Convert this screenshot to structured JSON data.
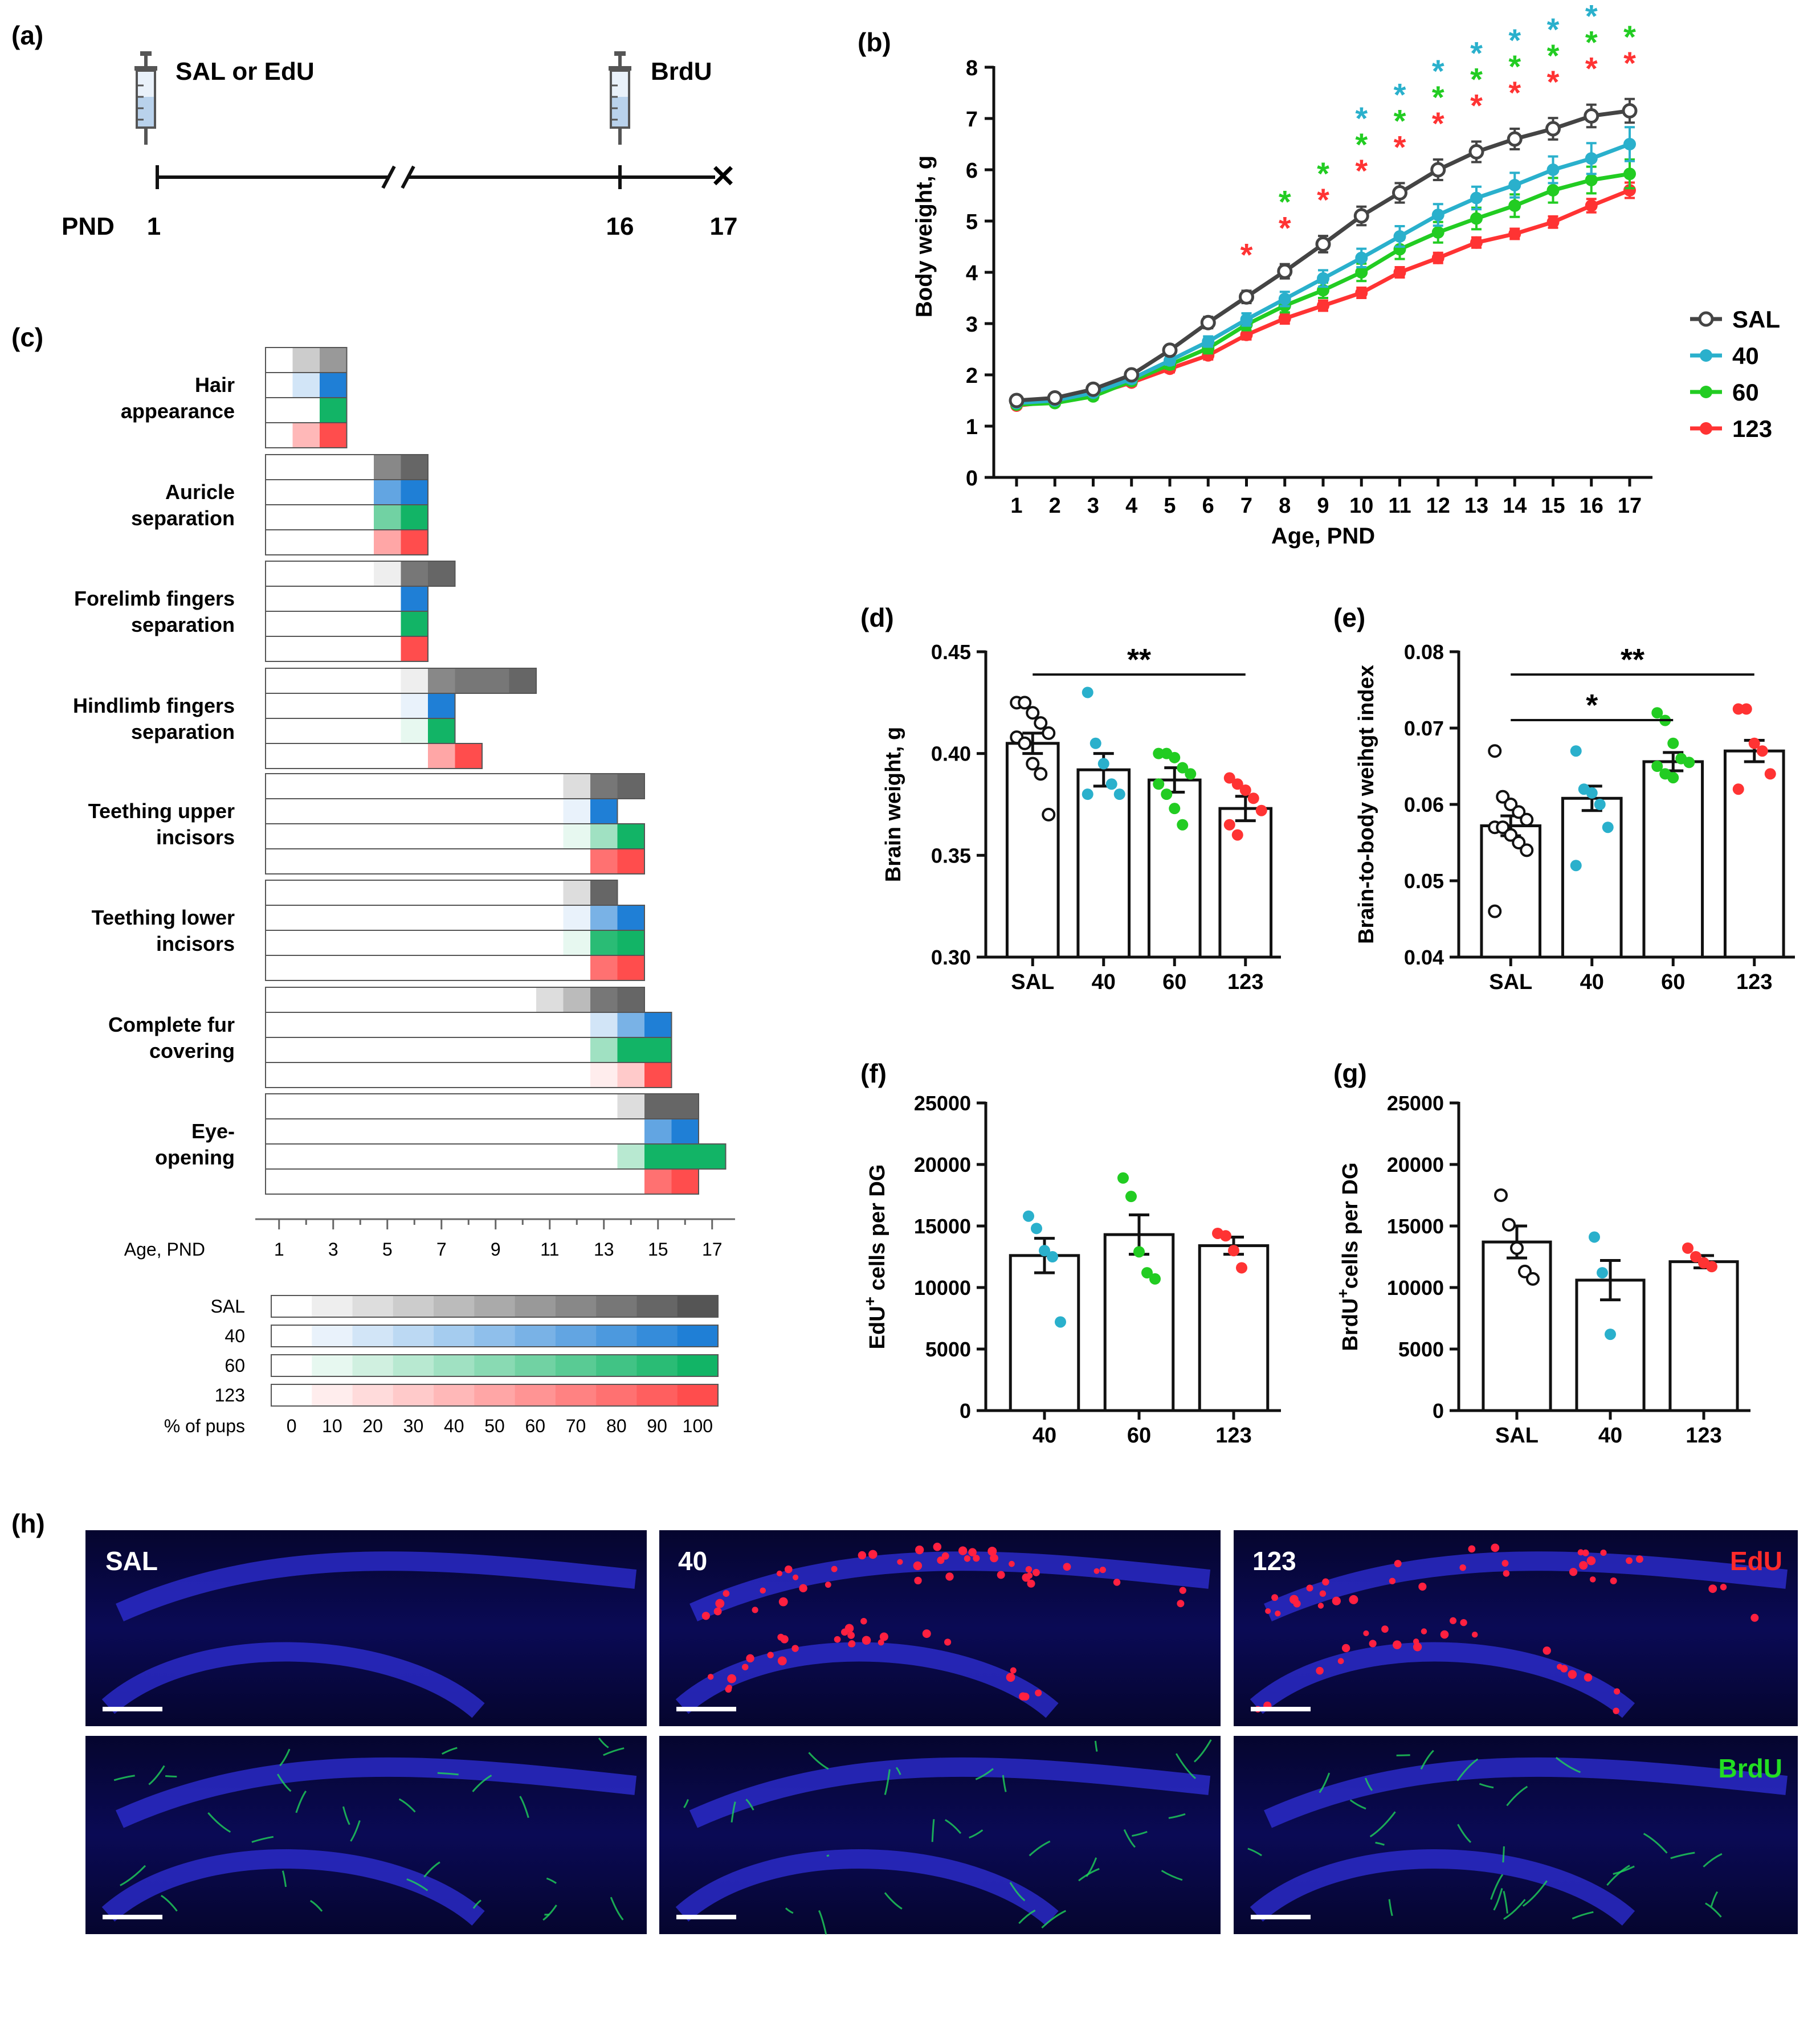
{
  "colors": {
    "SAL": "#444444",
    "40": "#2ab0cc",
    "60": "#22cc22",
    "123": "#ff3333",
    "gridBlue": "#1f7fd6",
    "gridGreen": "#12b466",
    "gridRed": "#ff4d4d",
    "gridGray": "#555555"
  },
  "panel_a": {
    "label": "(a)",
    "injection1": "SAL or EdU",
    "injection2": "BrdU",
    "pnd_label": "PND",
    "ticks": [
      "1",
      "16",
      "17"
    ]
  },
  "chart_data": [
    {
      "id": "b",
      "type": "line",
      "panel_label": "(b)",
      "xlabel": "Age, PND",
      "ylabel": "Body weight, g",
      "x": [
        1,
        2,
        3,
        4,
        5,
        6,
        7,
        8,
        9,
        10,
        11,
        12,
        13,
        14,
        15,
        16,
        17
      ],
      "ylim": [
        0,
        8
      ],
      "yticks": [
        "0",
        "1",
        "2",
        "3",
        "4",
        "5",
        "6",
        "7",
        "8"
      ],
      "series": [
        {
          "name": "SAL",
          "color": "#444444",
          "marker": "open-circle",
          "values": [
            1.5,
            1.55,
            1.72,
            2.0,
            2.48,
            3.02,
            3.52,
            4.02,
            4.55,
            5.1,
            5.55,
            6.0,
            6.35,
            6.6,
            6.8,
            7.05,
            7.15
          ],
          "errors": [
            0.05,
            0.05,
            0.06,
            0.07,
            0.09,
            0.11,
            0.12,
            0.14,
            0.16,
            0.18,
            0.19,
            0.2,
            0.2,
            0.2,
            0.21,
            0.22,
            0.23
          ]
        },
        {
          "name": "40",
          "color": "#2ab0cc",
          "marker": "filled-circle",
          "values": [
            1.45,
            1.5,
            1.65,
            1.92,
            2.28,
            2.65,
            3.08,
            3.48,
            3.88,
            4.28,
            4.7,
            5.12,
            5.45,
            5.7,
            6.0,
            6.22,
            6.5
          ],
          "errors": [
            0.05,
            0.05,
            0.06,
            0.07,
            0.08,
            0.1,
            0.12,
            0.14,
            0.16,
            0.18,
            0.2,
            0.21,
            0.22,
            0.24,
            0.26,
            0.3,
            0.33
          ]
        },
        {
          "name": "60",
          "color": "#22cc22",
          "marker": "filled-circle",
          "values": [
            1.42,
            1.45,
            1.58,
            1.88,
            2.2,
            2.52,
            2.98,
            3.35,
            3.65,
            4.0,
            4.45,
            4.78,
            5.05,
            5.3,
            5.6,
            5.8,
            5.92
          ],
          "errors": [
            0.05,
            0.05,
            0.06,
            0.07,
            0.08,
            0.1,
            0.11,
            0.13,
            0.15,
            0.17,
            0.19,
            0.2,
            0.21,
            0.22,
            0.24,
            0.26,
            0.28
          ]
        },
        {
          "name": "123",
          "color": "#ff3333",
          "marker": "filled-circle",
          "values": [
            1.4,
            1.48,
            1.62,
            1.85,
            2.12,
            2.38,
            2.78,
            3.1,
            3.35,
            3.6,
            4.0,
            4.28,
            4.58,
            4.75,
            4.98,
            5.3,
            5.6
          ],
          "errors": [
            0.04,
            0.04,
            0.05,
            0.06,
            0.07,
            0.08,
            0.09,
            0.1,
            0.1,
            0.1,
            0.1,
            0.1,
            0.1,
            0.1,
            0.11,
            0.13,
            0.15
          ]
        }
      ],
      "significance": {
        "123": [
          7,
          8,
          9,
          10,
          11,
          12,
          13,
          14,
          15,
          16,
          17
        ],
        "60": [
          8,
          9,
          10,
          11,
          12,
          13,
          14,
          15,
          16,
          17
        ],
        "40": [
          10,
          11,
          12,
          13,
          14,
          15,
          16
        ]
      },
      "legend": [
        "SAL",
        "40",
        "60",
        "123"
      ],
      "legend_position": "right"
    },
    {
      "id": "c",
      "type": "heatmap",
      "panel_label": "(c)",
      "xlabel": "Age, PND",
      "xticks": [
        "1",
        "3",
        "5",
        "7",
        "9",
        "11",
        "13",
        "15",
        "17"
      ],
      "groups": [
        "SAL",
        "40",
        "60",
        "123"
      ],
      "legend_label": "% of pups",
      "legend_ticks": [
        "0",
        "10",
        "20",
        "30",
        "40",
        "50",
        "60",
        "70",
        "80",
        "90",
        "100"
      ],
      "milestones": [
        {
          "name": [
            "Hair",
            "appearance"
          ],
          "rows": [
            {
              "start": 1,
              "pct": [
                0,
                30,
                60
              ]
            },
            {
              "start": 1,
              "pct": [
                0,
                20,
                100
              ]
            },
            {
              "start": 1,
              "pct": [
                0,
                0,
                100
              ]
            },
            {
              "start": 1,
              "pct": [
                0,
                40,
                100
              ]
            }
          ]
        },
        {
          "name": [
            "Auricle",
            "separation"
          ],
          "rows": [
            {
              "start": 5,
              "pct": [
                70,
                90
              ]
            },
            {
              "start": 5,
              "pct": [
                70,
                100
              ]
            },
            {
              "start": 5,
              "pct": [
                60,
                100
              ]
            },
            {
              "start": 5,
              "pct": [
                50,
                100
              ]
            }
          ]
        },
        {
          "name": [
            "Forelimb fingers",
            "separation"
          ],
          "rows": [
            {
              "start": 5,
              "pct": [
                10,
                80,
                90
              ]
            },
            {
              "start": 5,
              "pct": [
                0,
                100
              ]
            },
            {
              "start": 5,
              "pct": [
                0,
                100
              ]
            },
            {
              "start": 5,
              "pct": [
                0,
                100
              ]
            }
          ]
        },
        {
          "name": [
            "Hindlimb fingers",
            "separation"
          ],
          "rows": [
            {
              "start": 6,
              "pct": [
                10,
                70,
                80,
                80,
                90
              ]
            },
            {
              "start": 6,
              "pct": [
                10,
                100
              ]
            },
            {
              "start": 6,
              "pct": [
                10,
                100
              ]
            },
            {
              "start": 6,
              "pct": [
                0,
                50,
                100
              ]
            }
          ]
        },
        {
          "name": [
            "Teething upper",
            "incisors"
          ],
          "rows": [
            {
              "start": 12,
              "pct": [
                20,
                80,
                90
              ]
            },
            {
              "start": 12,
              "pct": [
                10,
                100
              ]
            },
            {
              "start": 12,
              "pct": [
                10,
                40,
                100
              ]
            },
            {
              "start": 12,
              "pct": [
                0,
                80,
                100
              ]
            }
          ]
        },
        {
          "name": [
            "Teething lower",
            "incisors"
          ],
          "rows": [
            {
              "start": 12,
              "pct": [
                20,
                90
              ]
            },
            {
              "start": 12,
              "pct": [
                10,
                60,
                100
              ]
            },
            {
              "start": 12,
              "pct": [
                10,
                90,
                100
              ]
            },
            {
              "start": 12,
              "pct": [
                0,
                80,
                100
              ]
            }
          ]
        },
        {
          "name": [
            "Complete fur",
            "covering"
          ],
          "rows": [
            {
              "start": 11,
              "pct": [
                20,
                40,
                80,
                90
              ]
            },
            {
              "start": 11,
              "pct": [
                0,
                0,
                20,
                60,
                100
              ]
            },
            {
              "start": 11,
              "pct": [
                0,
                0,
                40,
                100,
                100
              ]
            },
            {
              "start": 11,
              "pct": [
                0,
                0,
                10,
                30,
                100
              ]
            }
          ]
        },
        {
          "name": [
            "Eye-",
            "opening"
          ],
          "rows": [
            {
              "start": 14,
              "pct": [
                20,
                90,
                90
              ]
            },
            {
              "start": 14,
              "pct": [
                0,
                70,
                100
              ]
            },
            {
              "start": 14,
              "pct": [
                30,
                100,
                100,
                100
              ]
            },
            {
              "start": 14,
              "pct": [
                0,
                80,
                100
              ]
            }
          ]
        }
      ]
    },
    {
      "id": "d",
      "type": "bar",
      "panel_label": "(d)",
      "categories": [
        "SAL",
        "40",
        "60",
        "123"
      ],
      "values": [
        0.405,
        0.392,
        0.387,
        0.373
      ],
      "errors": [
        0.005,
        0.008,
        0.006,
        0.006
      ],
      "ylabel": "Brain weight, g",
      "ylim": [
        0.3,
        0.45
      ],
      "yticks": [
        "0.30",
        "0.35",
        "0.40",
        "0.45"
      ],
      "points": [
        [
          0.425,
          0.425,
          0.42,
          0.415,
          0.41,
          0.408,
          0.405,
          0.395,
          0.39,
          0.37
        ],
        [
          0.43,
          0.405,
          0.395,
          0.385,
          0.38,
          0.38
        ],
        [
          0.4,
          0.4,
          0.398,
          0.393,
          0.39,
          0.385,
          0.38,
          0.373,
          0.365
        ],
        [
          0.388,
          0.385,
          0.382,
          0.378,
          0.372,
          0.365,
          0.36
        ]
      ],
      "brackets": [
        {
          "from": "SAL",
          "to": "123",
          "label": "**"
        }
      ]
    },
    {
      "id": "e",
      "type": "bar",
      "panel_label": "(e)",
      "categories": [
        "SAL",
        "40",
        "60",
        "123"
      ],
      "values": [
        0.0572,
        0.0608,
        0.0656,
        0.067
      ],
      "errors": [
        0.0013,
        0.0016,
        0.0012,
        0.0014
      ],
      "ylabel": "Brain-to-body weihgt index",
      "ylim": [
        0.04,
        0.08
      ],
      "yticks": [
        "0.04",
        "0.05",
        "0.06",
        "0.07",
        "0.08"
      ],
      "points": [
        [
          0.067,
          0.061,
          0.06,
          0.059,
          0.058,
          0.057,
          0.057,
          0.056,
          0.055,
          0.054,
          0.046
        ],
        [
          0.067,
          0.062,
          0.0615,
          0.06,
          0.057,
          0.052
        ],
        [
          0.072,
          0.071,
          0.068,
          0.066,
          0.0655,
          0.065,
          0.064,
          0.0635
        ],
        [
          0.0725,
          0.0725,
          0.068,
          0.067,
          0.064,
          0.062
        ]
      ],
      "brackets": [
        {
          "from": "SAL",
          "to": "60",
          "label": "*"
        },
        {
          "from": "SAL",
          "to": "123",
          "label": "**"
        }
      ]
    },
    {
      "id": "f",
      "type": "bar",
      "panel_label": "(f)",
      "categories": [
        "40",
        "60",
        "123"
      ],
      "values": [
        12600,
        14300,
        13400
      ],
      "errors": [
        1400,
        1600,
        700
      ],
      "ylabel_pre": "EdU",
      "ylabel_sup": "+",
      "ylabel_post": " cells per DG",
      "ylim": [
        0,
        25000
      ],
      "yticks": [
        "0",
        "5000",
        "10000",
        "15000",
        "20000",
        "25000"
      ],
      "points": [
        [
          15800,
          14800,
          13000,
          12500,
          7200
        ],
        [
          18900,
          17400,
          12900,
          11200,
          10700
        ],
        [
          14400,
          14200,
          13000,
          11600
        ]
      ]
    },
    {
      "id": "g",
      "type": "bar",
      "panel_label": "(g)",
      "categories": [
        "SAL",
        "40",
        "123"
      ],
      "values": [
        13700,
        10600,
        12100
      ],
      "errors": [
        1300,
        1600,
        500
      ],
      "ylabel_pre": "BrdU",
      "ylabel_sup": "+",
      "ylabel_post": "cells per DG",
      "ylim": [
        0,
        25000
      ],
      "yticks": [
        "0",
        "5000",
        "10000",
        "15000",
        "20000",
        "25000"
      ],
      "points": [
        [
          17500,
          15100,
          13200,
          11300,
          10700
        ],
        [
          14100,
          11200,
          6200
        ],
        [
          13200,
          12500,
          12000,
          11700
        ]
      ]
    }
  ],
  "panel_h": {
    "label": "(h)",
    "columns": [
      "SAL",
      "40",
      "123"
    ],
    "marker_top": "EdU",
    "marker_bottom": "BrdU"
  }
}
